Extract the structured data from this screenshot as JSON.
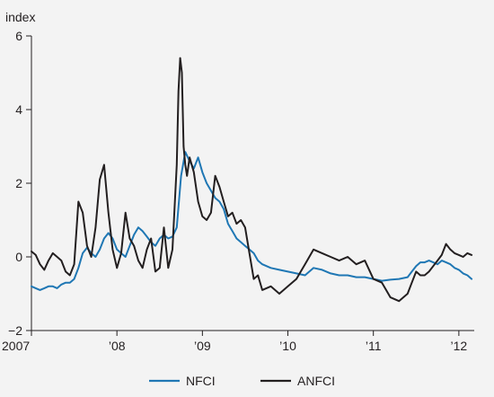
{
  "chart_data": {
    "type": "line",
    "ylabel": "index",
    "ylim": [
      -2,
      6
    ],
    "yticks": [
      {
        "value": -2,
        "label": "−2"
      },
      {
        "value": 0,
        "label": "0"
      },
      {
        "value": 2,
        "label": "2"
      },
      {
        "value": 4,
        "label": "4"
      },
      {
        "value": 6,
        "label": "6"
      }
    ],
    "xlim": [
      2007.0,
      2012.18
    ],
    "xticks": [
      {
        "value": 2007,
        "label": "2007"
      },
      {
        "value": 2008,
        "label": "’08"
      },
      {
        "value": 2009,
        "label": "’09"
      },
      {
        "value": 2010,
        "label": "’10"
      },
      {
        "value": 2011,
        "label": "’11"
      },
      {
        "value": 2012,
        "label": "’12"
      }
    ],
    "grid": false,
    "legend_position": "bottom",
    "series": [
      {
        "name": "NFCI",
        "color": "#1f77b4",
        "x": [
          2007.0,
          2007.05,
          2007.1,
          2007.15,
          2007.2,
          2007.25,
          2007.3,
          2007.35,
          2007.4,
          2007.45,
          2007.5,
          2007.55,
          2007.6,
          2007.65,
          2007.7,
          2007.75,
          2007.8,
          2007.85,
          2007.9,
          2007.95,
          2008.0,
          2008.05,
          2008.1,
          2008.15,
          2008.2,
          2008.25,
          2008.3,
          2008.35,
          2008.4,
          2008.45,
          2008.5,
          2008.55,
          2008.6,
          2008.65,
          2008.7,
          2008.75,
          2008.8,
          2008.85,
          2008.9,
          2008.95,
          2009.0,
          2009.05,
          2009.1,
          2009.15,
          2009.2,
          2009.25,
          2009.3,
          2009.35,
          2009.4,
          2009.45,
          2009.5,
          2009.55,
          2009.6,
          2009.65,
          2009.7,
          2009.8,
          2009.9,
          2010.0,
          2010.1,
          2010.2,
          2010.3,
          2010.4,
          2010.5,
          2010.6,
          2010.7,
          2010.8,
          2010.9,
          2011.0,
          2011.1,
          2011.2,
          2011.3,
          2011.4,
          2011.45,
          2011.5,
          2011.55,
          2011.6,
          2011.65,
          2011.7,
          2011.75,
          2011.8,
          2011.85,
          2011.9,
          2011.95,
          2012.0,
          2012.05,
          2012.1,
          2012.15
        ],
        "values": [
          -0.8,
          -0.85,
          -0.9,
          -0.85,
          -0.8,
          -0.8,
          -0.85,
          -0.75,
          -0.7,
          -0.7,
          -0.6,
          -0.3,
          0.1,
          0.25,
          0.1,
          0.0,
          0.2,
          0.5,
          0.65,
          0.5,
          0.2,
          0.1,
          0.0,
          0.3,
          0.6,
          0.8,
          0.7,
          0.55,
          0.4,
          0.3,
          0.5,
          0.6,
          0.5,
          0.55,
          0.8,
          2.2,
          2.85,
          2.6,
          2.4,
          2.7,
          2.3,
          2.0,
          1.8,
          1.6,
          1.5,
          1.3,
          0.9,
          0.7,
          0.5,
          0.4,
          0.3,
          0.2,
          0.1,
          -0.1,
          -0.2,
          -0.3,
          -0.35,
          -0.4,
          -0.45,
          -0.5,
          -0.3,
          -0.35,
          -0.45,
          -0.5,
          -0.5,
          -0.55,
          -0.55,
          -0.6,
          -0.65,
          -0.62,
          -0.6,
          -0.55,
          -0.4,
          -0.25,
          -0.15,
          -0.15,
          -0.1,
          -0.15,
          -0.2,
          -0.1,
          -0.15,
          -0.2,
          -0.3,
          -0.35,
          -0.45,
          -0.5,
          -0.6
        ]
      },
      {
        "name": "ANFCI",
        "color": "#231f20",
        "x": [
          2007.0,
          2007.05,
          2007.1,
          2007.15,
          2007.2,
          2007.25,
          2007.3,
          2007.35,
          2007.4,
          2007.45,
          2007.5,
          2007.55,
          2007.6,
          2007.65,
          2007.7,
          2007.75,
          2007.8,
          2007.85,
          2007.9,
          2007.95,
          2008.0,
          2008.05,
          2008.1,
          2008.15,
          2008.2,
          2008.25,
          2008.3,
          2008.35,
          2008.4,
          2008.45,
          2008.5,
          2008.55,
          2008.6,
          2008.65,
          2008.7,
          2008.72,
          2008.74,
          2008.76,
          2008.78,
          2008.8,
          2008.82,
          2008.85,
          2008.9,
          2008.95,
          2009.0,
          2009.05,
          2009.1,
          2009.15,
          2009.2,
          2009.25,
          2009.3,
          2009.35,
          2009.4,
          2009.45,
          2009.5,
          2009.55,
          2009.6,
          2009.65,
          2009.7,
          2009.8,
          2009.9,
          2010.0,
          2010.1,
          2010.2,
          2010.3,
          2010.4,
          2010.5,
          2010.6,
          2010.7,
          2010.8,
          2010.9,
          2011.0,
          2011.1,
          2011.2,
          2011.3,
          2011.4,
          2011.45,
          2011.5,
          2011.55,
          2011.6,
          2011.65,
          2011.7,
          2011.75,
          2011.8,
          2011.85,
          2011.9,
          2011.95,
          2012.0,
          2012.05,
          2012.1,
          2012.15
        ],
        "values": [
          0.15,
          0.05,
          -0.2,
          -0.35,
          -0.1,
          0.1,
          0.0,
          -0.1,
          -0.4,
          -0.5,
          -0.2,
          1.5,
          1.2,
          0.3,
          0.0,
          0.8,
          2.1,
          2.5,
          1.2,
          0.2,
          -0.3,
          0.1,
          1.2,
          0.5,
          0.3,
          -0.1,
          -0.3,
          0.2,
          0.5,
          -0.4,
          -0.3,
          0.8,
          -0.3,
          0.2,
          2.5,
          4.5,
          5.4,
          5.0,
          3.0,
          2.5,
          2.2,
          2.7,
          2.3,
          1.5,
          1.1,
          1.0,
          1.2,
          2.2,
          1.9,
          1.5,
          1.1,
          1.2,
          0.9,
          1.0,
          0.8,
          0.1,
          -0.6,
          -0.5,
          -0.9,
          -0.8,
          -1.0,
          -0.8,
          -0.6,
          -0.2,
          0.2,
          0.1,
          0.0,
          -0.1,
          0.0,
          -0.2,
          -0.1,
          -0.6,
          -0.7,
          -1.1,
          -1.2,
          -1.0,
          -0.7,
          -0.4,
          -0.5,
          -0.5,
          -0.4,
          -0.25,
          -0.1,
          0.05,
          0.35,
          0.2,
          0.1,
          0.05,
          0.0,
          0.1,
          0.05
        ]
      }
    ]
  }
}
